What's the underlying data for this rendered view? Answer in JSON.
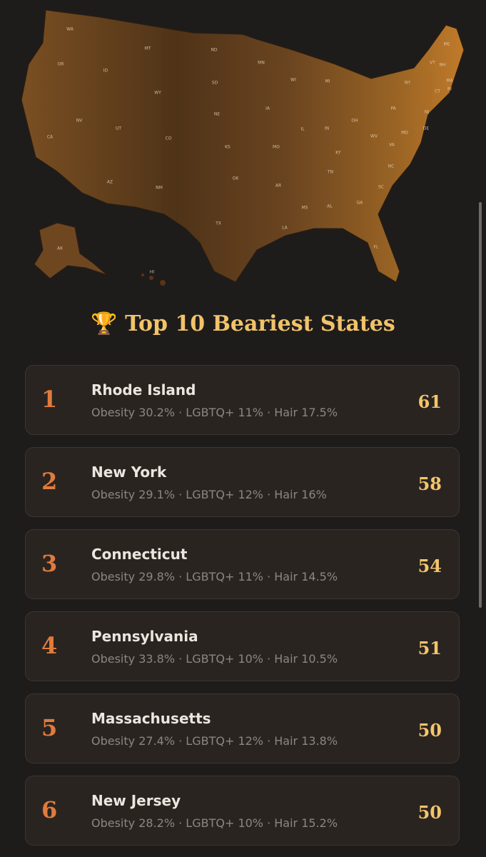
{
  "map": {
    "states": [
      "WA",
      "OR",
      "CA",
      "NV",
      "ID",
      "MT",
      "WY",
      "UT",
      "CO",
      "AZ",
      "NM",
      "ND",
      "SD",
      "NE",
      "KS",
      "OK",
      "TX",
      "MN",
      "IA",
      "MO",
      "AR",
      "LA",
      "WI",
      "IL",
      "MI",
      "IN",
      "OH",
      "KY",
      "TN",
      "MS",
      "AL",
      "GA",
      "FL",
      "SC",
      "NC",
      "VA",
      "WV",
      "PA",
      "NY",
      "VT",
      "NH",
      "ME",
      "MA",
      "RI",
      "CT",
      "NJ",
      "DE",
      "MD",
      "AK",
      "HI"
    ]
  },
  "title": "🏆 Top 10 Beariest States",
  "list": [
    {
      "rank": "1",
      "name": "Rhode Island",
      "stats": "Obesity 30.2% · LGBTQ+ 11% · Hair 17.5%",
      "score": "61"
    },
    {
      "rank": "2",
      "name": "New York",
      "stats": "Obesity 29.1% · LGBTQ+ 12% · Hair 16%",
      "score": "58"
    },
    {
      "rank": "3",
      "name": "Connecticut",
      "stats": "Obesity 29.8% · LGBTQ+ 11% · Hair 14.5%",
      "score": "54"
    },
    {
      "rank": "4",
      "name": "Pennsylvania",
      "stats": "Obesity 33.8% · LGBTQ+ 10% · Hair 10.5%",
      "score": "51"
    },
    {
      "rank": "5",
      "name": "Massachusetts",
      "stats": "Obesity 27.4% · LGBTQ+ 12% · Hair 13.8%",
      "score": "50"
    },
    {
      "rank": "6",
      "name": "New Jersey",
      "stats": "Obesity 28.2% · LGBTQ+ 10% · Hair 15.2%",
      "score": "50"
    }
  ]
}
